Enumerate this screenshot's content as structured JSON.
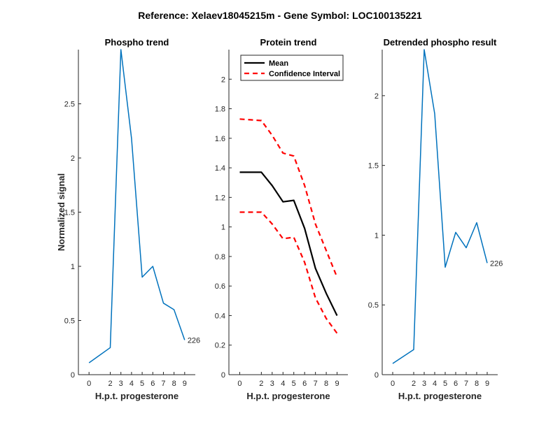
{
  "suptitle": "Reference:  Xelaev18045215m - Gene Symbol:  LOC100135221",
  "colors": {
    "blue": "#0072BD",
    "black": "#000000",
    "red": "#FF0000",
    "axis": "#262626"
  },
  "chart_data": [
    {
      "type": "line",
      "title": "Phospho trend",
      "xlabel": "H.p.t. progesterone",
      "ylabel": "Normalized signal",
      "xlim": [
        -1,
        10
      ],
      "ylim": [
        0,
        3
      ],
      "xticks": [
        0,
        2,
        3,
        4,
        5,
        6,
        7,
        8,
        9
      ],
      "yticks": [
        0,
        0.5,
        1,
        1.5,
        2,
        2.5
      ],
      "ytick_labels": [
        "0",
        "0.5",
        "1",
        "1.5",
        "2",
        "2.5"
      ],
      "series": [
        {
          "name": "Phospho",
          "color": "#0072BD",
          "style": "solid",
          "x": [
            0,
            2,
            3,
            4,
            5,
            6,
            7,
            8,
            9
          ],
          "values": [
            0.11,
            0.25,
            3.0,
            2.18,
            0.9,
            1.0,
            0.66,
            0.6,
            0.32
          ]
        }
      ],
      "annotation": {
        "text": "226",
        "x": 9,
        "y": 0.32
      }
    },
    {
      "type": "line",
      "title": "Protein trend",
      "xlabel": "H.p.t. progesterone",
      "ylabel": "",
      "xlim": [
        -1,
        10
      ],
      "ylim": [
        0,
        2.2
      ],
      "xticks": [
        0,
        2,
        3,
        4,
        5,
        6,
        7,
        8,
        9
      ],
      "yticks": [
        0,
        0.2,
        0.4,
        0.6,
        0.8,
        1,
        1.2,
        1.4,
        1.6,
        1.8,
        2
      ],
      "ytick_labels": [
        "0",
        "0.2",
        "0.4",
        "0.6",
        "0.8",
        "1",
        "1.2",
        "1.4",
        "1.6",
        "1.8",
        "2"
      ],
      "legend": {
        "position": "top-left",
        "entries": [
          "Mean",
          "Confidence Interval"
        ]
      },
      "series": [
        {
          "name": "Mean",
          "color": "#000000",
          "style": "solid",
          "x": [
            0,
            2,
            3,
            4,
            5,
            6,
            7,
            8,
            9
          ],
          "values": [
            1.37,
            1.37,
            1.28,
            1.17,
            1.18,
            0.99,
            0.72,
            0.55,
            0.4
          ]
        },
        {
          "name": "Confidence Interval (upper)",
          "color": "#FF0000",
          "style": "dashed",
          "x": [
            0,
            2,
            3,
            4,
            5,
            6,
            7,
            8,
            9
          ],
          "values": [
            1.73,
            1.72,
            1.62,
            1.5,
            1.48,
            1.28,
            1.02,
            0.84,
            0.66
          ]
        },
        {
          "name": "Confidence Interval (lower)",
          "color": "#FF0000",
          "style": "dashed",
          "x": [
            0,
            2,
            3,
            4,
            5,
            6,
            7,
            8,
            9
          ],
          "values": [
            1.1,
            1.1,
            1.02,
            0.92,
            0.93,
            0.76,
            0.52,
            0.38,
            0.28
          ]
        }
      ]
    },
    {
      "type": "line",
      "title": "Detrended phospho result",
      "xlabel": "H.p.t. progesterone",
      "ylabel": "",
      "xlim": [
        -1,
        10
      ],
      "ylim": [
        0,
        2.33
      ],
      "xticks": [
        0,
        2,
        3,
        4,
        5,
        6,
        7,
        8,
        9
      ],
      "yticks": [
        0,
        0.5,
        1,
        1.5,
        2
      ],
      "ytick_labels": [
        "0",
        "0.5",
        "1",
        "1.5",
        "2"
      ],
      "series": [
        {
          "name": "Detrended",
          "color": "#0072BD",
          "style": "solid",
          "x": [
            0,
            2,
            3,
            4,
            5,
            6,
            7,
            8,
            9
          ],
          "values": [
            0.08,
            0.18,
            2.33,
            1.87,
            0.77,
            1.02,
            0.91,
            1.09,
            0.8
          ]
        }
      ],
      "annotation": {
        "text": "226",
        "x": 9,
        "y": 0.8
      }
    }
  ]
}
